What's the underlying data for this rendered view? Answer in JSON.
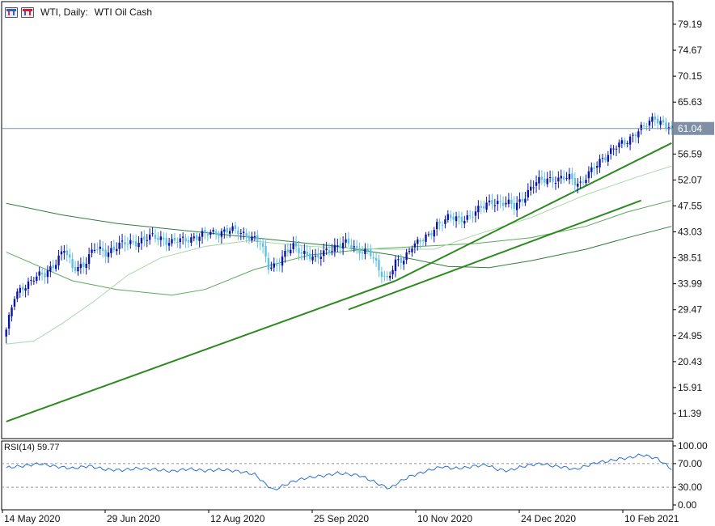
{
  "header": {
    "symbol_label": "WTI, Daily:",
    "instrument_name": "WTI Oil Cash"
  },
  "indicator": {
    "label": "RSI(14)",
    "value": "59.77"
  },
  "current_price_label": "61.04",
  "colors": {
    "up_candle": "#0a14a8",
    "down_candle": "#5ec0e6",
    "ma_fast": "#a8d8a8",
    "ma_mid": "#5aa85a",
    "ma_slow": "#2f7d3c",
    "trendline": "#2c8a1e",
    "rsi_line": "#2a6fd6",
    "price_line": "#7f8fa6"
  },
  "chart_data": [
    {
      "type": "candlestick",
      "title": "WTI, Daily: WTI Oil Cash",
      "xlabel": "",
      "ylabel": "",
      "y_ticks": [
        "79.19",
        "74.67",
        "70.15",
        "65.63",
        "61.04",
        "56.59",
        "52.07",
        "47.55",
        "43.03",
        "38.51",
        "33.99",
        "29.47",
        "24.95",
        "20.43",
        "15.91",
        "11.39"
      ],
      "x_ticks": [
        "14 May 2020",
        "29 Jun 2020",
        "12 Aug 2020",
        "25 Sep 2020",
        "10 Nov 2020",
        "24 Dec 2020",
        "10 Feb 2021"
      ],
      "ylim": [
        7.0,
        83.0
      ],
      "current_price": 61.04,
      "price_path": [
        [
          0,
          26.0
        ],
        [
          3,
          31.5
        ],
        [
          6,
          33.5
        ],
        [
          10,
          35.0
        ],
        [
          14,
          35.5
        ],
        [
          18,
          38.0
        ],
        [
          21,
          40.0
        ],
        [
          24,
          36.5
        ],
        [
          28,
          37.5
        ],
        [
          32,
          40.0
        ],
        [
          36,
          39.5
        ],
        [
          40,
          40.5
        ],
        [
          44,
          41.0
        ],
        [
          48,
          41.5
        ],
        [
          52,
          42.0
        ],
        [
          56,
          42.0
        ],
        [
          60,
          41.2
        ],
        [
          64,
          41.5
        ],
        [
          68,
          42.2
        ],
        [
          72,
          42.5
        ],
        [
          76,
          43.0
        ],
        [
          80,
          43.3
        ],
        [
          84,
          43.0
        ],
        [
          88,
          42.5
        ],
        [
          92,
          41.0
        ],
        [
          95,
          37.0
        ],
        [
          98,
          37.5
        ],
        [
          101,
          39.0
        ],
        [
          104,
          40.5
        ],
        [
          108,
          39.5
        ],
        [
          112,
          38.0
        ],
        [
          116,
          40.0
        ],
        [
          120,
          40.5
        ],
        [
          124,
          41.0
        ],
        [
          128,
          40.0
        ],
        [
          132,
          39.0
        ],
        [
          135,
          36.5
        ],
        [
          138,
          35.0
        ],
        [
          141,
          37.5
        ],
        [
          144,
          38.0
        ],
        [
          147,
          41.0
        ],
        [
          150,
          41.5
        ],
        [
          153,
          42.0
        ],
        [
          156,
          44.5
        ],
        [
          160,
          45.5
        ],
        [
          164,
          45.0
        ],
        [
          168,
          46.0
        ],
        [
          172,
          47.0
        ],
        [
          176,
          48.5
        ],
        [
          180,
          48.0
        ],
        [
          184,
          47.5
        ],
        [
          188,
          49.5
        ],
        [
          192,
          51.5
        ],
        [
          196,
          52.5
        ],
        [
          200,
          52.0
        ],
        [
          204,
          52.5
        ],
        [
          208,
          51.5
        ],
        [
          212,
          53.5
        ],
        [
          216,
          56.0
        ],
        [
          220,
          57.5
        ],
        [
          224,
          58.5
        ],
        [
          228,
          60.5
        ],
        [
          232,
          61.5
        ],
        [
          235,
          63.0
        ],
        [
          238,
          62.0
        ],
        [
          241,
          61.0
        ]
      ],
      "series": [
        {
          "name": "",
          "kind": "moving-average",
          "points": [
            [
              0,
              48.0
            ],
            [
              20,
              46.0
            ],
            [
              40,
              44.5
            ],
            [
              60,
              43.5
            ],
            [
              80,
              42.5
            ],
            [
              100,
              41.5
            ],
            [
              120,
              40.5
            ],
            [
              140,
              39.0
            ],
            [
              160,
              37.0
            ],
            [
              175,
              36.8
            ],
            [
              190,
              38.0
            ],
            [
              210,
              40.0
            ],
            [
              225,
              42.0
            ],
            [
              241,
              44.0
            ]
          ]
        },
        {
          "name": "",
          "kind": "moving-average",
          "points": [
            [
              0,
              39.5
            ],
            [
              12,
              37.0
            ],
            [
              24,
              34.5
            ],
            [
              40,
              33.0
            ],
            [
              60,
              32.0
            ],
            [
              72,
              33.0
            ],
            [
              90,
              36.5
            ],
            [
              110,
              39.0
            ],
            [
              130,
              40.0
            ],
            [
              150,
              40.5
            ],
            [
              170,
              41.0
            ],
            [
              190,
              42.0
            ],
            [
              210,
              44.0
            ],
            [
              225,
              46.5
            ],
            [
              241,
              48.5
            ]
          ]
        },
        {
          "name": "",
          "kind": "moving-average",
          "points": [
            [
              0,
              23.5
            ],
            [
              10,
              24.0
            ],
            [
              20,
              27.0
            ],
            [
              32,
              31.0
            ],
            [
              44,
              35.5
            ],
            [
              56,
              38.5
            ],
            [
              72,
              40.5
            ],
            [
              88,
              41.5
            ],
            [
              110,
              40.5
            ],
            [
              135,
              40.0
            ],
            [
              155,
              40.0
            ],
            [
              170,
              42.5
            ],
            [
              190,
              45.5
            ],
            [
              210,
              49.5
            ],
            [
              228,
              52.5
            ],
            [
              241,
              54.5
            ]
          ]
        },
        {
          "name": "",
          "kind": "trendline",
          "points": [
            [
              0,
              10.0
            ],
            [
              141,
              34.5
            ]
          ]
        },
        {
          "name": "",
          "kind": "trendline",
          "points": [
            [
              141,
              34.5
            ],
            [
              241,
              58.5
            ]
          ]
        },
        {
          "name": "",
          "kind": "trendline",
          "points": [
            [
              124,
              29.5
            ],
            [
              230,
              48.5
            ]
          ]
        }
      ]
    },
    {
      "type": "line",
      "title": "RSI(14) 59.77",
      "xlabel": "",
      "ylabel": "",
      "y_ticks": [
        "100.00",
        "70.00",
        "30.00",
        "0.00"
      ],
      "levels": [
        70,
        30
      ],
      "ylim": [
        0,
        100
      ],
      "series": [
        {
          "name": "RSI(14)",
          "points": [
            [
              0,
              63
            ],
            [
              6,
              66
            ],
            [
              12,
              70
            ],
            [
              18,
              65
            ],
            [
              24,
              62
            ],
            [
              30,
              66
            ],
            [
              36,
              60
            ],
            [
              42,
              59
            ],
            [
              48,
              62
            ],
            [
              54,
              60
            ],
            [
              60,
              57
            ],
            [
              66,
              61
            ],
            [
              72,
              58
            ],
            [
              78,
              60
            ],
            [
              84,
              57
            ],
            [
              90,
              52
            ],
            [
              94,
              35
            ],
            [
              97,
              25
            ],
            [
              100,
              32
            ],
            [
              104,
              40
            ],
            [
              108,
              45
            ],
            [
              112,
              48
            ],
            [
              116,
              50
            ],
            [
              120,
              54
            ],
            [
              124,
              52
            ],
            [
              128,
              50
            ],
            [
              132,
              42
            ],
            [
              136,
              33
            ],
            [
              139,
              28
            ],
            [
              142,
              38
            ],
            [
              146,
              48
            ],
            [
              150,
              54
            ],
            [
              154,
              60
            ],
            [
              158,
              65
            ],
            [
              162,
              62
            ],
            [
              166,
              63
            ],
            [
              170,
              66
            ],
            [
              174,
              68
            ],
            [
              178,
              60
            ],
            [
              182,
              58
            ],
            [
              186,
              64
            ],
            [
              190,
              68
            ],
            [
              194,
              70
            ],
            [
              198,
              66
            ],
            [
              202,
              64
            ],
            [
              206,
              60
            ],
            [
              210,
              66
            ],
            [
              214,
              72
            ],
            [
              218,
              74
            ],
            [
              222,
              78
            ],
            [
              226,
              80
            ],
            [
              230,
              85
            ],
            [
              233,
              82
            ],
            [
              236,
              78
            ],
            [
              239,
              68
            ],
            [
              241,
              59.77
            ]
          ]
        }
      ]
    }
  ]
}
